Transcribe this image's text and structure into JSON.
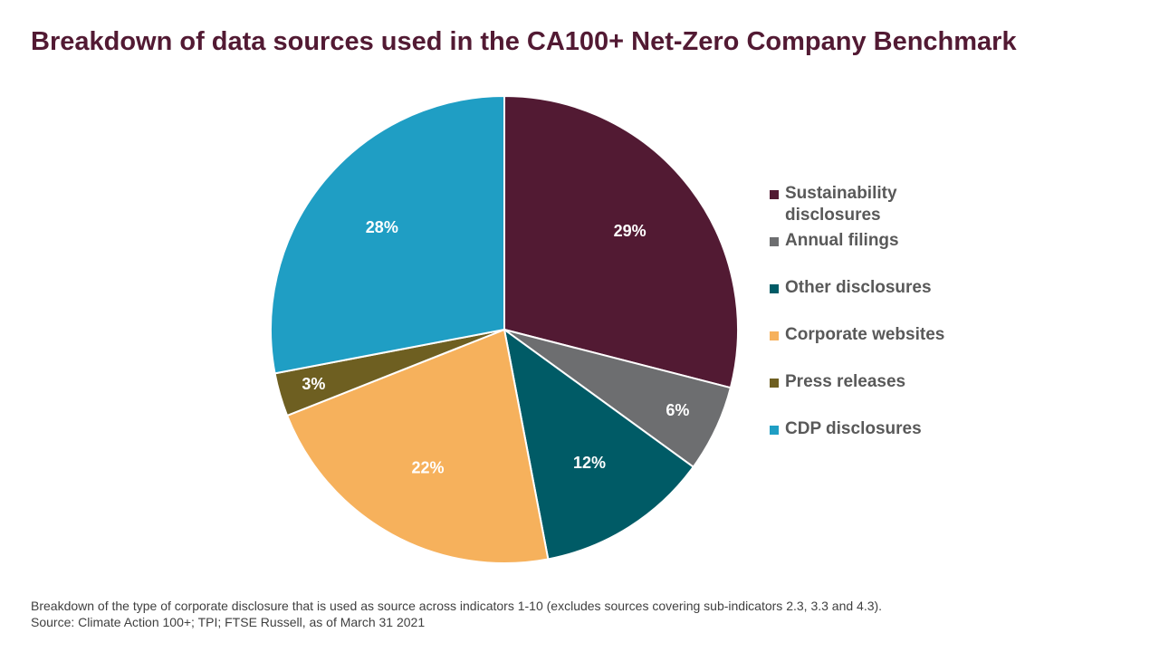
{
  "title": "Breakdown of data sources used in the CA100+ Net-Zero Company Benchmark",
  "chart_data": {
    "type": "pie",
    "title": "Breakdown of data sources used in the CA100+ Net-Zero Company Benchmark",
    "slices": [
      {
        "label": "Sustainability disclosures",
        "value": 29,
        "value_label": "29%",
        "color": "#521a33"
      },
      {
        "label": "Annual filings",
        "value": 6,
        "value_label": "6%",
        "color": "#6d6e70"
      },
      {
        "label": "Other disclosures",
        "value": 12,
        "value_label": "12%",
        "color": "#005b66"
      },
      {
        "label": "Corporate websites",
        "value": 22,
        "value_label": "22%",
        "color": "#f6b15c"
      },
      {
        "label": "Press releases",
        "value": 3,
        "value_label": "3%",
        "color": "#6e5f21"
      },
      {
        "label": "CDP disclosures",
        "value": 28,
        "value_label": "28%",
        "color": "#1f9ec4"
      }
    ],
    "legend_position": "right"
  },
  "footnote": {
    "line1": "Breakdown of the type of corporate disclosure that is used as source across indicators 1-10 (excludes sources covering sub-indicators 2.3, 3.3 and 4.3).",
    "line2": "Source: Climate Action 100+; TPI; FTSE Russell, as of March 31 2021"
  }
}
